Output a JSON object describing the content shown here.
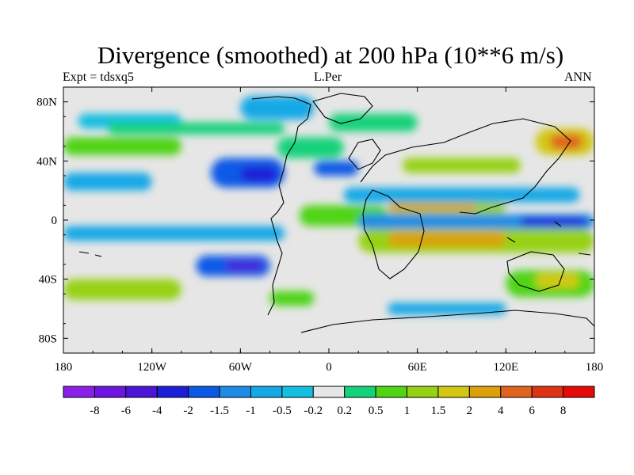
{
  "chart_data": {
    "type": "heatmap",
    "title": "Divergence (smoothed) at 200 hPa (10**6 m/s)",
    "subtitle_left": "Expt = tdsxq5",
    "subtitle_center": "L.Per",
    "subtitle_right": "ANN",
    "x_ticks": [
      "180",
      "120W",
      "60W",
      "0",
      "60E",
      "120E",
      "180"
    ],
    "x_tick_values": [
      -180,
      -120,
      -60,
      0,
      60,
      120,
      180
    ],
    "y_ticks": [
      "80N",
      "40N",
      "0",
      "40S",
      "80S"
    ],
    "y_tick_values": [
      80,
      40,
      0,
      -40,
      -80
    ],
    "xlim": [
      -180,
      180
    ],
    "ylim": [
      -90,
      90
    ],
    "colorbar": {
      "labels": [
        "-8",
        "-6",
        "-4",
        "-2",
        "-1.5",
        "-1",
        "-0.5",
        "-0.2",
        "0.2",
        "0.5",
        "1",
        "1.5",
        "2",
        "4",
        "6",
        "8"
      ],
      "colors": [
        "#8d20e8",
        "#6e14e0",
        "#4b14d8",
        "#1e1ed8",
        "#0a5ae6",
        "#1e8ce6",
        "#14a8e6",
        "#14bee0",
        "#e6e6e6",
        "#14d27a",
        "#50d414",
        "#96d214",
        "#d2c814",
        "#dca00a",
        "#e0641e",
        "#e03214",
        "#e60a0a"
      ]
    },
    "field_regions": [
      {
        "lon": [
          -170,
          -100
        ],
        "lat": [
          62,
          72
        ],
        "level": 7
      },
      {
        "lon": [
          -180,
          -100
        ],
        "lat": [
          44,
          56
        ],
        "level": 10
      },
      {
        "lon": [
          -150,
          -30
        ],
        "lat": [
          58,
          66
        ],
        "level": 9
      },
      {
        "lon": [
          -60,
          -10
        ],
        "lat": [
          68,
          84
        ],
        "level": 6
      },
      {
        "lon": [
          -180,
          -120
        ],
        "lat": [
          20,
          32
        ],
        "level": 6
      },
      {
        "lon": [
          -80,
          -30
        ],
        "lat": [
          22,
          42
        ],
        "level": 4
      },
      {
        "lon": [
          -60,
          -35
        ],
        "lat": [
          26,
          36
        ],
        "level": 3
      },
      {
        "lon": [
          -35,
          10
        ],
        "lat": [
          42,
          56
        ],
        "level": 9
      },
      {
        "lon": [
          -20,
          40
        ],
        "lat": [
          -4,
          10
        ],
        "level": 10
      },
      {
        "lon": [
          10,
          170
        ],
        "lat": [
          12,
          22
        ],
        "level": 6
      },
      {
        "lon": [
          40,
          120
        ],
        "lat": [
          4,
          12
        ],
        "level": 11
      },
      {
        "lon": [
          40,
          100
        ],
        "lat": [
          6,
          11
        ],
        "level": 13
      },
      {
        "lon": [
          20,
          180
        ],
        "lat": [
          -6,
          4
        ],
        "level": 5
      },
      {
        "lon": [
          130,
          175
        ],
        "lat": [
          -4,
          2
        ],
        "level": 3
      },
      {
        "lon": [
          20,
          180
        ],
        "lat": [
          -22,
          -6
        ],
        "level": 11
      },
      {
        "lon": [
          40,
          120
        ],
        "lat": [
          -18,
          -8
        ],
        "level": 13
      },
      {
        "lon": [
          -180,
          -30
        ],
        "lat": [
          -14,
          -4
        ],
        "level": 6
      },
      {
        "lon": [
          -90,
          -40
        ],
        "lat": [
          -38,
          -24
        ],
        "level": 4
      },
      {
        "lon": [
          -70,
          -45
        ],
        "lat": [
          -34,
          -28
        ],
        "level": 2
      },
      {
        "lon": [
          -180,
          -100
        ],
        "lat": [
          -54,
          -40
        ],
        "level": 11
      },
      {
        "lon": [
          -40,
          -10
        ],
        "lat": [
          -58,
          -48
        ],
        "level": 10
      },
      {
        "lon": [
          120,
          180
        ],
        "lat": [
          -52,
          -34
        ],
        "level": 10
      },
      {
        "lon": [
          140,
          170
        ],
        "lat": [
          -46,
          -36
        ],
        "level": 12
      },
      {
        "lon": [
          40,
          120
        ],
        "lat": [
          -64,
          -56
        ],
        "level": 6
      },
      {
        "lon": [
          140,
          180
        ],
        "lat": [
          44,
          62
        ],
        "level": 12
      },
      {
        "lon": [
          150,
          172
        ],
        "lat": [
          48,
          58
        ],
        "level": 14
      },
      {
        "lon": [
          50,
          130
        ],
        "lat": [
          32,
          42
        ],
        "level": 11
      },
      {
        "lon": [
          -10,
          20
        ],
        "lat": [
          30,
          40
        ],
        "level": 4
      },
      {
        "lon": [
          0,
          60
        ],
        "lat": [
          60,
          72
        ],
        "level": 9
      }
    ]
  }
}
